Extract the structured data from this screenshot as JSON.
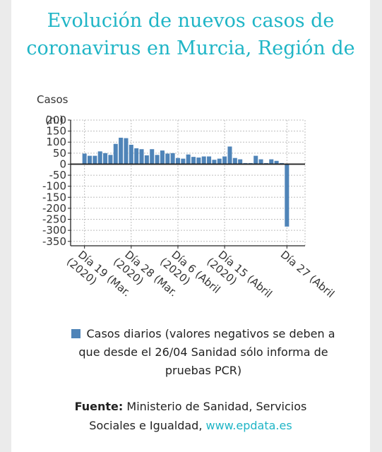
{
  "chart_data": {
    "type": "bar",
    "title_lines": [
      "Evolución de nuevos casos de",
      "coronavirus en Murcia, Región de"
    ],
    "ylabel": "Casos",
    "ylabel_unit": "(n.)",
    "yticks": [
      200,
      150,
      100,
      50,
      0,
      -50,
      -100,
      -150,
      -200,
      -250,
      -300,
      -350
    ],
    "ylim": [
      -370,
      200
    ],
    "xtick_labels": [
      {
        "line1": "Día 19 (Mar.",
        "line2": "(2020)",
        "index": 0
      },
      {
        "line1": "Día 28 (Mar.",
        "line2": "(2020)",
        "index": 9
      },
      {
        "line1": "Día 6 (Abril",
        "line2": "(2020)",
        "index": 18
      },
      {
        "line1": "Día 15 (Abril",
        "line2": "(2020)",
        "index": 27
      },
      {
        "line1": "Día 27 (Abril",
        "line2": "",
        "index": 39
      }
    ],
    "series": [
      {
        "name": "Casos diarios (valores negativos se deben a que desde el 26/04 Sanidad sólo informa de pruebas PCR)",
        "color": "#4f84b8",
        "values": [
          48,
          38,
          38,
          58,
          50,
          42,
          92,
          120,
          118,
          88,
          72,
          68,
          40,
          68,
          42,
          62,
          48,
          50,
          28,
          25,
          44,
          33,
          30,
          35,
          35,
          20,
          25,
          35,
          80,
          28,
          22,
          5,
          5,
          38,
          22,
          5,
          22,
          15,
          5,
          -283
        ]
      }
    ],
    "grid": true,
    "legend_position": "bottom"
  },
  "legend": {
    "lines": [
      "Casos diarios (valores negativos se deben a",
      "que desde el 26/04 Sanidad sólo informa de",
      "pruebas PCR)"
    ]
  },
  "source": {
    "label": "Fuente:",
    "text_line1": "Ministerio de Sanidad, Servicios",
    "text_line2": "Sociales e Igualdad,",
    "link": "www.epdata.es"
  },
  "colors": {
    "title": "#1fb5c6",
    "bar": "#4f84b8",
    "link": "#1fb5c6"
  }
}
